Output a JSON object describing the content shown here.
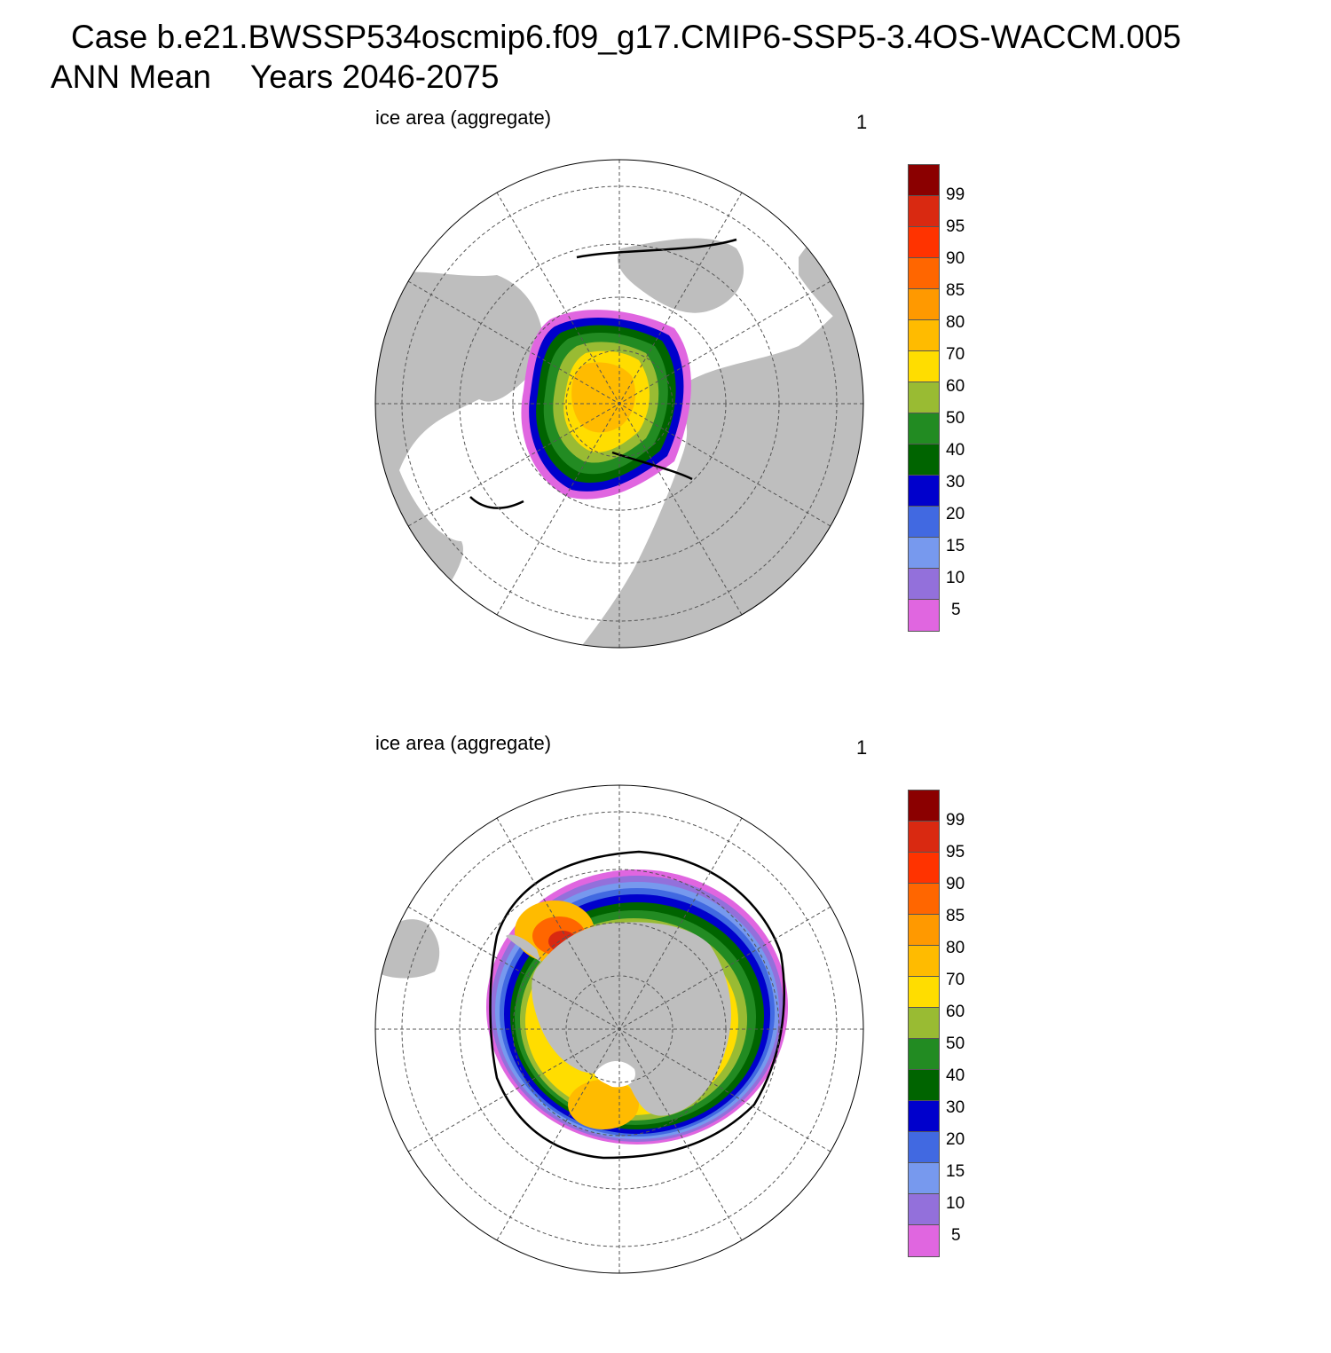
{
  "title": {
    "line1": "Case b.e21.BWSSP534oscmip6.f09_g17.CMIP6-SSP5-3.4OS-WACCM.005",
    "season": "ANN Mean",
    "years": "Years 2046-2075"
  },
  "panels": [
    {
      "id": "nh",
      "subtitle": "ice area  (aggregate)",
      "scale_label": "1",
      "hemisphere": "north"
    },
    {
      "id": "sh",
      "subtitle": "ice area  (aggregate)",
      "scale_label": "1",
      "hemisphere": "south"
    }
  ],
  "colorbar": {
    "labels": [
      "99",
      "95",
      "90",
      "85",
      "80",
      "70",
      "60",
      "50",
      "40",
      "30",
      "20",
      "15",
      "10",
      "5"
    ],
    "colors": [
      "#8b0000",
      "#d92911",
      "#ff3300",
      "#ff6600",
      "#ff9900",
      "#ffbb00",
      "#ffdd00",
      "#99bb33",
      "#228b22",
      "#006400",
      "#0000cc",
      "#4169e1",
      "#7799ee",
      "#9370db",
      "#e066e0"
    ]
  },
  "map_colors": {
    "land": "#bebebe",
    "ocean": "#ffffff",
    "grid": "#555555",
    "ice_edge": "#000000"
  }
}
